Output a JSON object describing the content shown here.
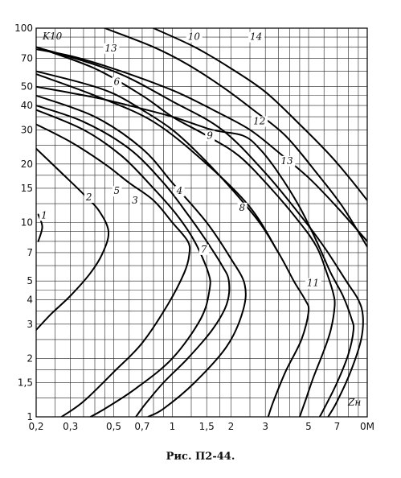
{
  "chart_data": {
    "type": "line",
    "x_scale": "log",
    "y_scale": "log",
    "xlim": [
      0.2,
      10
    ],
    "ylim": [
      1,
      100
    ],
    "grid": true,
    "x_ticks": [
      {
        "v": 0.2,
        "t": "0,2"
      },
      {
        "v": 0.3,
        "t": "0,3"
      },
      {
        "v": 0.5,
        "t": "0,5"
      },
      {
        "v": 0.7,
        "t": "0,7"
      },
      {
        "v": 1,
        "t": "1"
      },
      {
        "v": 1.5,
        "t": "1,5"
      },
      {
        "v": 2,
        "t": "2"
      },
      {
        "v": 3,
        "t": "3"
      },
      {
        "v": 5,
        "t": "5"
      },
      {
        "v": 7,
        "t": "7"
      },
      {
        "v": 10,
        "t": "0M"
      }
    ],
    "y_ticks": [
      {
        "v": 1,
        "t": "1"
      },
      {
        "v": 1.5,
        "t": "1,5"
      },
      {
        "v": 2,
        "t": "2"
      },
      {
        "v": 3,
        "t": "3"
      },
      {
        "v": 4,
        "t": "4"
      },
      {
        "v": 5,
        "t": "5"
      },
      {
        "v": 7,
        "t": "7"
      },
      {
        "v": 10,
        "t": "10"
      },
      {
        "v": 15,
        "t": "15"
      },
      {
        "v": 20,
        "t": "20"
      },
      {
        "v": 30,
        "t": "30"
      },
      {
        "v": 40,
        "t": "40"
      },
      {
        "v": 50,
        "t": "50"
      },
      {
        "v": 70,
        "t": "70"
      },
      {
        "v": 100,
        "t": "100"
      }
    ],
    "x_grid": [
      0.2,
      0.25,
      0.3,
      0.35,
      0.4,
      0.45,
      0.5,
      0.6,
      0.7,
      0.8,
      0.9,
      1,
      1.25,
      1.5,
      1.75,
      2,
      2.5,
      3,
      3.5,
      4,
      4.5,
      5,
      6,
      7,
      8,
      9,
      10
    ],
    "y_grid": [
      1,
      1.25,
      1.5,
      1.75,
      2,
      2.5,
      3,
      3.5,
      4,
      4.5,
      5,
      6,
      7,
      8,
      9,
      10,
      12.5,
      15,
      17.5,
      20,
      25,
      30,
      35,
      40,
      45,
      50,
      60,
      70,
      80,
      90,
      100
    ],
    "ylabel": "K10",
    "xlabel": "Zн",
    "series": [
      {
        "name": "1",
        "points": [
          [
            0.205,
            11
          ],
          [
            0.215,
            9.5
          ],
          [
            0.205,
            8
          ]
        ]
      },
      {
        "name": "2",
        "points": [
          [
            0.2,
            24
          ],
          [
            0.27,
            18
          ],
          [
            0.35,
            14
          ],
          [
            0.42,
            11.5
          ],
          [
            0.47,
            9
          ],
          [
            0.44,
            7
          ],
          [
            0.38,
            5.5
          ],
          [
            0.3,
            4.2
          ],
          [
            0.24,
            3.4
          ],
          [
            0.2,
            2.8
          ]
        ]
      },
      {
        "name": "3",
        "points": [
          [
            0.2,
            38
          ],
          [
            0.35,
            30
          ],
          [
            0.55,
            22
          ],
          [
            0.8,
            15
          ],
          [
            1.05,
            11
          ],
          [
            1.3,
            8
          ],
          [
            1.53,
            5.5
          ],
          [
            1.55,
            4.5
          ],
          [
            1.4,
            3.2
          ],
          [
            1.0,
            2.0
          ],
          [
            0.65,
            1.4
          ],
          [
            0.45,
            1.1
          ],
          [
            0.38,
            1
          ]
        ]
      },
      {
        "name": "4",
        "points": [
          [
            0.2,
            45
          ],
          [
            0.4,
            35
          ],
          [
            0.7,
            24
          ],
          [
            1.0,
            16
          ],
          [
            1.5,
            10
          ],
          [
            2.0,
            6.5
          ],
          [
            2.35,
            4.8
          ],
          [
            2.3,
            3.5
          ],
          [
            1.9,
            2.3
          ],
          [
            1.3,
            1.5
          ],
          [
            0.9,
            1.1
          ],
          [
            0.75,
            1
          ]
        ]
      },
      {
        "name": "5",
        "points": [
          [
            0.2,
            40
          ],
          [
            0.35,
            33
          ],
          [
            0.6,
            24
          ],
          [
            0.9,
            16
          ],
          [
            1.2,
            11
          ],
          [
            1.5,
            8
          ],
          [
            1.8,
            6
          ],
          [
            1.95,
            5
          ],
          [
            1.9,
            3.8
          ],
          [
            1.6,
            2.8
          ],
          [
            1.2,
            2.0
          ],
          [
            0.9,
            1.5
          ],
          [
            0.72,
            1.15
          ],
          [
            0.65,
            1
          ]
        ]
      },
      {
        "name": "6",
        "points": [
          [
            0.2,
            60
          ],
          [
            0.35,
            52
          ],
          [
            0.5,
            46
          ],
          [
            0.7,
            38
          ],
          [
            1.0,
            30
          ],
          [
            1.4,
            22
          ],
          [
            2.0,
            15
          ],
          [
            2.8,
            10
          ],
          [
            3.5,
            7
          ]
        ]
      },
      {
        "name": "7",
        "points": [
          [
            0.2,
            32
          ],
          [
            0.3,
            26
          ],
          [
            0.45,
            20
          ],
          [
            0.6,
            16
          ],
          [
            0.8,
            13
          ],
          [
            1.0,
            10
          ],
          [
            1.2,
            8
          ],
          [
            1.22,
            6.8
          ],
          [
            1.15,
            5.5
          ],
          [
            0.95,
            3.8
          ],
          [
            0.7,
            2.4
          ],
          [
            0.5,
            1.7
          ],
          [
            0.35,
            1.2
          ],
          [
            0.27,
            1
          ]
        ]
      },
      {
        "name": "8",
        "points": [
          [
            0.2,
            58
          ],
          [
            0.4,
            45
          ],
          [
            0.8,
            33
          ],
          [
            1.5,
            20
          ],
          [
            2.5,
            12
          ],
          [
            3.5,
            7
          ],
          [
            4.2,
            5
          ],
          [
            4.8,
            4
          ],
          [
            5.0,
            3.5
          ],
          [
            4.6,
            2.5
          ],
          [
            3.8,
            1.7
          ],
          [
            3.3,
            1.2
          ],
          [
            3.1,
            1
          ]
        ]
      },
      {
        "name": "9",
        "points": [
          [
            0.2,
            80
          ],
          [
            0.4,
            62
          ],
          [
            0.7,
            45
          ],
          [
            1.0,
            35
          ],
          [
            1.5,
            28
          ],
          [
            2.2,
            22
          ],
          [
            3.2,
            15
          ],
          [
            4.5,
            10
          ],
          [
            5.5,
            7.5
          ],
          [
            6.2,
            5.5
          ],
          [
            6.7,
            4.3
          ],
          [
            6.8,
            3.7
          ],
          [
            6.5,
            2.8
          ],
          [
            6.0,
            2.2
          ],
          [
            5.3,
            1.6
          ],
          [
            4.8,
            1.2
          ],
          [
            4.5,
            1
          ]
        ]
      },
      {
        "name": "10",
        "points": [
          [
            0.45,
            100
          ],
          [
            0.8,
            80
          ],
          [
            1.2,
            65
          ],
          [
            1.8,
            50
          ],
          [
            2.6,
            38
          ],
          [
            3.8,
            28
          ],
          [
            5.5,
            18
          ],
          [
            7.5,
            12
          ],
          [
            10,
            7.5
          ]
        ]
      },
      {
        "name": "11",
        "points": [
          [
            0.2,
            80
          ],
          [
            0.5,
            60
          ],
          [
            1.0,
            42
          ],
          [
            1.8,
            30
          ],
          [
            3.0,
            18
          ],
          [
            4.5,
            11
          ],
          [
            6.0,
            7.5
          ],
          [
            7.8,
            5
          ],
          [
            9.0,
            4
          ],
          [
            9.5,
            3.3
          ],
          [
            9.3,
            2.5
          ],
          [
            8.2,
            1.7
          ],
          [
            7.0,
            1.2
          ],
          [
            6.3,
            1
          ]
        ]
      },
      {
        "name": "12",
        "points": [
          [
            0.2,
            50
          ],
          [
            0.4,
            44
          ],
          [
            0.6,
            40
          ],
          [
            1.0,
            35
          ],
          [
            1.6,
            30
          ],
          [
            2.3,
            28
          ],
          [
            2.8,
            24
          ],
          [
            3.5,
            18
          ],
          [
            4.5,
            12
          ],
          [
            5.5,
            8
          ],
          [
            6.5,
            5.5
          ],
          [
            7.5,
            4.2
          ],
          [
            8.3,
            3.2
          ],
          [
            8.5,
            2.8
          ],
          [
            8.0,
            2.1
          ],
          [
            7.0,
            1.5
          ],
          [
            6.0,
            1.1
          ],
          [
            5.7,
            1
          ]
        ]
      },
      {
        "name": "13",
        "points": [
          [
            0.2,
            78
          ],
          [
            0.3,
            72
          ],
          [
            0.45,
            64
          ],
          [
            0.7,
            55
          ],
          [
            1.1,
            46
          ],
          [
            1.7,
            37
          ],
          [
            2.5,
            30
          ],
          [
            3.5,
            23
          ],
          [
            5.0,
            17
          ],
          [
            7.0,
            12
          ],
          [
            10,
            8
          ]
        ]
      },
      {
        "name": "14",
        "points": [
          [
            0.8,
            100
          ],
          [
            1.3,
            80
          ],
          [
            2.0,
            62
          ],
          [
            3.0,
            47
          ],
          [
            4.5,
            32
          ],
          [
            6.5,
            22
          ],
          [
            8.5,
            16
          ],
          [
            10,
            13
          ]
        ]
      }
    ],
    "curve_labels": [
      {
        "text": "1",
        "x": 0.212,
        "y": 10.5
      },
      {
        "text": "2",
        "x": 0.36,
        "y": 13
      },
      {
        "text": "3",
        "x": 0.62,
        "y": 12.5
      },
      {
        "text": "4",
        "x": 1.05,
        "y": 14
      },
      {
        "text": "5",
        "x": 0.5,
        "y": 14
      },
      {
        "text": "6",
        "x": 0.5,
        "y": 51
      },
      {
        "text": "7",
        "x": 1.4,
        "y": 7
      },
      {
        "text": "8",
        "x": 2.2,
        "y": 11.5
      },
      {
        "text": "9",
        "x": 1.5,
        "y": 27
      },
      {
        "text": "10",
        "x": 1.2,
        "y": 87
      },
      {
        "text": "11",
        "x": 4.9,
        "y": 4.7
      },
      {
        "text": "12",
        "x": 2.6,
        "y": 32
      },
      {
        "text": "13",
        "x": 0.45,
        "y": 76
      },
      {
        "text": "13",
        "x": 3.6,
        "y": 20
      },
      {
        "text": "14",
        "x": 2.5,
        "y": 87
      }
    ]
  },
  "caption": "Рис. П2-44."
}
